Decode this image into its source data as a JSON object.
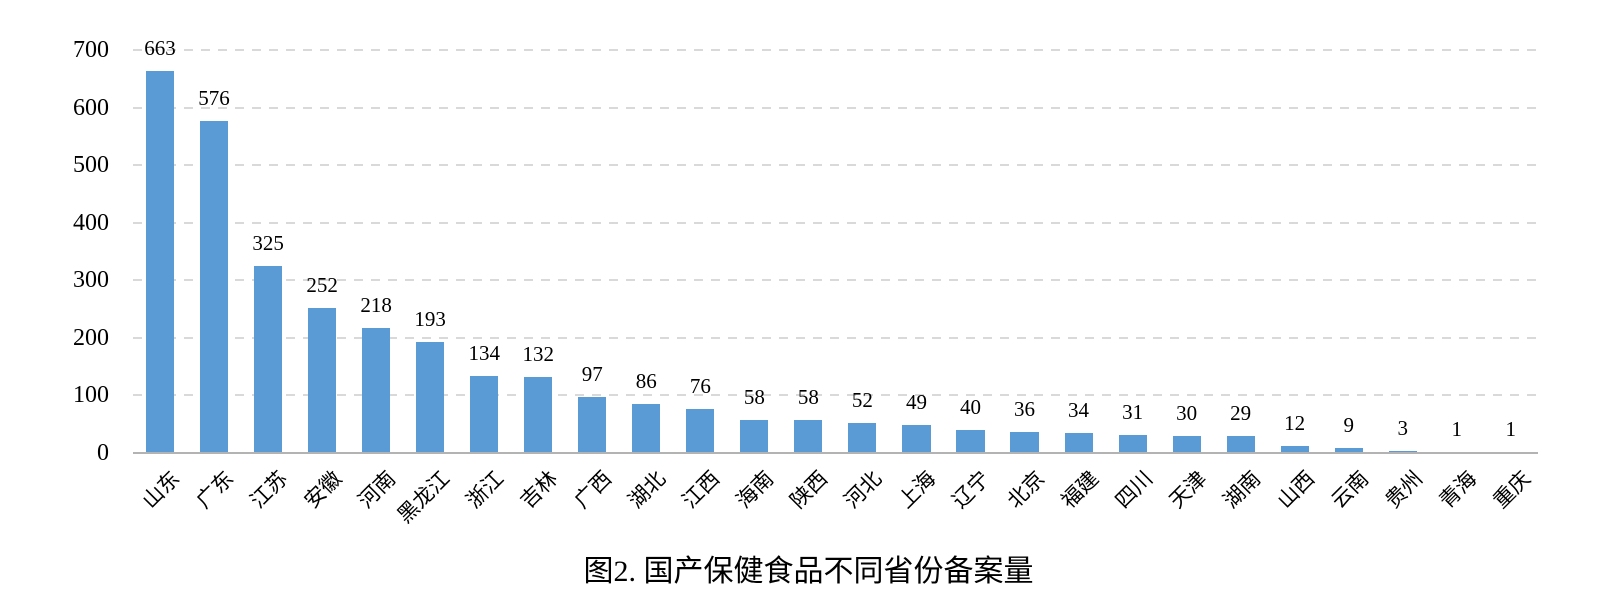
{
  "title": "图2. 国产保健食品不同省份备案量",
  "axis": {
    "y_ticks": [
      0,
      100,
      200,
      300,
      400,
      500,
      600,
      700
    ],
    "y_max": 700
  },
  "colors": {
    "bar": "#5B9BD5",
    "gridline": "#D9D9D9",
    "axis_line": "#B3B3B3",
    "text": "#000000"
  },
  "chart_data": {
    "type": "bar",
    "title": "图2. 国产保健食品不同省份备案量",
    "categories": [
      "山东",
      "广东",
      "江苏",
      "安徽",
      "河南",
      "黑龙江",
      "浙江",
      "吉林",
      "广西",
      "湖北",
      "江西",
      "海南",
      "陕西",
      "河北",
      "上海",
      "辽宁",
      "北京",
      "福建",
      "四川",
      "天津",
      "湖南",
      "山西",
      "云南",
      "贵州",
      "青海",
      "重庆"
    ],
    "values": [
      663,
      576,
      325,
      252,
      218,
      193,
      134,
      132,
      97,
      86,
      76,
      58,
      58,
      52,
      49,
      40,
      36,
      34,
      31,
      30,
      29,
      12,
      9,
      3,
      1,
      1
    ],
    "xlabel": "",
    "ylabel": "",
    "ylim": [
      0,
      700
    ],
    "grid": "horizontal-dashed",
    "legend": "none",
    "data_labels": true
  }
}
